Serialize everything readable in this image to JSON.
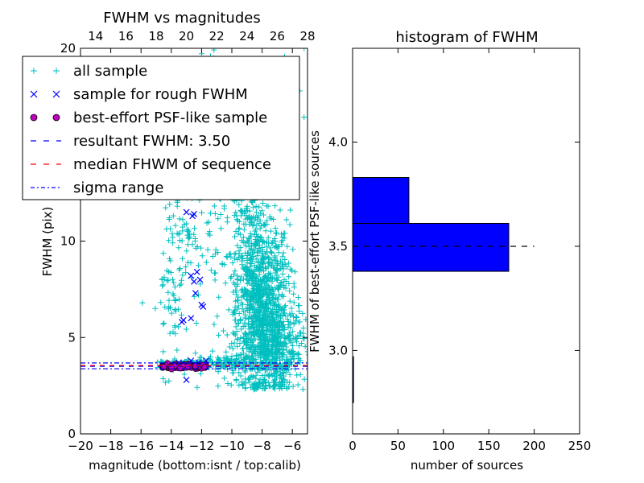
{
  "chart_data": [
    {
      "type": "scatter",
      "title": "FWHM vs magnitudes",
      "xlabel": "magnitude (bottom:isnt / top:calib)",
      "ylabel": "FWHM (pix)",
      "xlim": [
        -20,
        -5
      ],
      "ylim": [
        0,
        20
      ],
      "xticks": [
        "−20",
        "−18",
        "−16",
        "−14",
        "−12",
        "−10",
        "−8",
        "−6"
      ],
      "xtick_values": [
        -20,
        -18,
        -16,
        -14,
        -12,
        -10,
        -8,
        -6
      ],
      "yticks": [
        "0",
        "5",
        "10"
      ],
      "ytick_values": [
        0,
        5,
        10
      ],
      "top_axis": {
        "ticks": [
          "14",
          "16",
          "18",
          "20",
          "22",
          "24",
          "26",
          "28"
        ],
        "tick_values": [
          14,
          16,
          18,
          20,
          22,
          24,
          26,
          28
        ],
        "lim": [
          13,
          28
        ]
      },
      "legend": {
        "placement": "top-left",
        "entries": [
          {
            "label": "all sample",
            "marker": "plus",
            "color": "#00bfbf"
          },
          {
            "label": "sample for rough FWHM",
            "marker": "x",
            "color": "#0000ff"
          },
          {
            "label": "best-effort PSF-like sample",
            "marker": "circle",
            "color": "#bf00bf"
          },
          {
            "label": "resultant FWHM: 3.50",
            "marker": "dashed",
            "color": "#0000ff"
          },
          {
            "label": "median FHWM of sequence",
            "marker": "dashed",
            "color": "#ff0000"
          },
          {
            "label": "sigma range",
            "marker": "dashdot",
            "color": "#0000ff"
          }
        ]
      },
      "series": [
        {
          "name": "all sample",
          "color": "#00bfbf",
          "clusters": [
            {
              "x_center": -8.0,
              "y_center": 6.5,
              "x_spread": 0.9,
              "y_spread": 2.5,
              "count": 900
            },
            {
              "x_center": -8.8,
              "y_center": 9.0,
              "x_spread": 0.6,
              "y_spread": 3.5,
              "count": 250
            },
            {
              "x_center": -6.8,
              "y_center": 4.5,
              "x_spread": 0.8,
              "y_spread": 1.2,
              "count": 300
            },
            {
              "x_center": -10.5,
              "y_center": 12.0,
              "x_spread": 1.8,
              "y_spread": 4.5,
              "count": 200
            },
            {
              "x_center": -14.0,
              "y_center": 7.5,
              "x_spread": 0.4,
              "y_spread": 2.5,
              "count": 70
            },
            {
              "x_center": -13.0,
              "y_center": 9.8,
              "x_spread": 0.4,
              "y_spread": 0.8,
              "count": 40
            },
            {
              "x_center": -13.0,
              "y_center": 3.6,
              "x_spread": 1.0,
              "y_spread": 0.1,
              "count": 150
            },
            {
              "x_center": -9.8,
              "y_center": 3.7,
              "x_spread": 1.3,
              "y_spread": 0.2,
              "count": 120
            },
            {
              "x_center": -7.5,
              "y_center": 17.0,
              "x_spread": 1.2,
              "y_spread": 2.0,
              "count": 40
            }
          ]
        },
        {
          "name": "sample for rough FWHM",
          "color": "#0000ff",
          "points": [
            [
              -13.0,
              11.5
            ],
            [
              -12.5,
              11.4
            ],
            [
              -12.6,
              11.3
            ],
            [
              -12.3,
              8.4
            ],
            [
              -12.7,
              8.2
            ],
            [
              -12.1,
              8.0
            ],
            [
              -12.5,
              7.9
            ],
            [
              -12.4,
              7.3
            ],
            [
              -12.0,
              6.7
            ],
            [
              -11.9,
              6.6
            ],
            [
              -13.2,
              5.9
            ],
            [
              -13.3,
              5.8
            ],
            [
              -12.7,
              6.0
            ],
            [
              -12.7,
              3.8
            ],
            [
              -13.0,
              2.8
            ],
            [
              -13.5,
              3.7
            ],
            [
              -12.2,
              3.7
            ],
            [
              -11.7,
              3.8
            ]
          ]
        },
        {
          "name": "best-effort PSF-like sample",
          "color": "#bf00bf",
          "x_range": [
            -14.6,
            -11.7
          ],
          "y_center": 3.5,
          "y_spread": 0.05,
          "count": 170
        }
      ],
      "hlines": [
        {
          "name": "resultant FWHM",
          "y": 3.5,
          "color": "#0000ff",
          "style": "dashed"
        },
        {
          "name": "median FHWM of sequence",
          "y": 3.55,
          "color": "#ff0000",
          "style": "dashed"
        },
        {
          "name": "sigma range",
          "y": 3.68,
          "color": "#0000ff",
          "style": "dashdot"
        },
        {
          "name": "sigma range",
          "y": 3.38,
          "color": "#0000ff",
          "style": "dashdot"
        }
      ]
    },
    {
      "type": "bar",
      "orientation": "horizontal",
      "title": "histogram of FWHM",
      "xlabel": "number of sources",
      "ylabel": "FWHM of best-effort PSF-like sources",
      "xlim": [
        0,
        250
      ],
      "ylim": [
        2.6,
        4.45
      ],
      "xticks": [
        "0",
        "50",
        "100",
        "150",
        "200",
        "250"
      ],
      "xtick_values": [
        0,
        50,
        100,
        150,
        200,
        250
      ],
      "yticks": [
        "3.0",
        "3.5",
        "4.0"
      ],
      "ytick_values": [
        3.0,
        3.5,
        4.0
      ],
      "bars": [
        {
          "bin": [
            2.75,
            2.97
          ],
          "count": 1
        },
        {
          "bin": [
            3.38,
            3.61
          ],
          "count": 172
        },
        {
          "bin": [
            3.61,
            3.83
          ],
          "count": 62
        }
      ],
      "bar_color": "#0000ff",
      "hlines": [
        {
          "name": "resultant FWHM",
          "y": 3.5,
          "x_range": [
            0,
            200
          ],
          "color": "#000000",
          "style": "dashed"
        }
      ]
    }
  ]
}
